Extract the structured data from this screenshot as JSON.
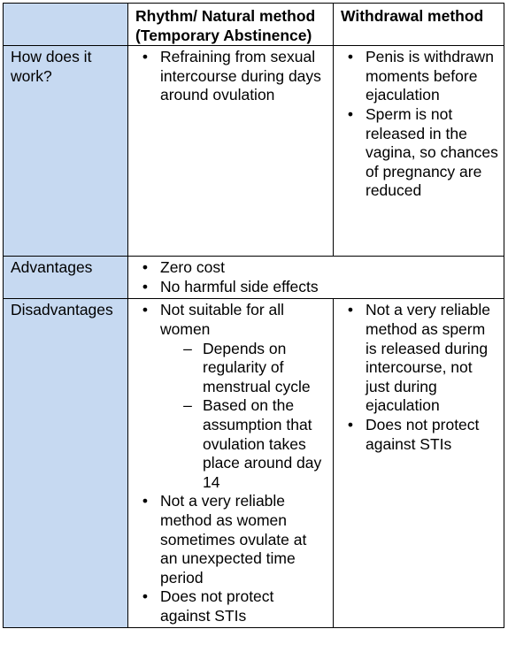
{
  "header": {
    "col2": "Rhythm/ Natural method (Temporary Abstinence)",
    "col3": "Withdrawal method"
  },
  "rows": {
    "how": {
      "label": "How does it work?",
      "rhythm": [
        "Refraining from sexual intercourse during days around ovulation"
      ],
      "withdrawal": [
        "Penis is withdrawn moments before ejaculation",
        "Sperm is not released in the vagina, so chances of pregnancy are reduced"
      ]
    },
    "advantages": {
      "label": "Advantages",
      "items": [
        "Zero cost",
        "No harmful side effects"
      ]
    },
    "disadvantages": {
      "label": "Disadvantages",
      "rhythm": {
        "item1": "Not suitable for all women",
        "sub": [
          "Depends on regularity of menstrual cycle",
          "Based on the assumption that ovulation takes place around day 14"
        ],
        "item2": "Not a very reliable method as women sometimes ovulate at an unexpected time period",
        "item3": "Does not protect against STIs"
      },
      "withdrawal": [
        "Not a very reliable method as sperm is released during intercourse, not just during ejaculation",
        "Does not protect against STIs"
      ]
    }
  },
  "icons": {
    "bullet": "•",
    "dash": "–"
  },
  "colors": {
    "row_header_bg": "#c6d9f1",
    "border": "#000000"
  }
}
